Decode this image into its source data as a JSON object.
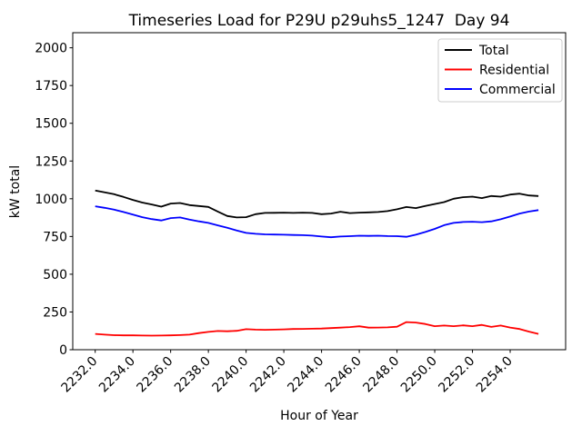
{
  "chart_data": {
    "type": "line",
    "title": "Timeseries Load for P29U p29uhs5_1247  Day 94",
    "xlabel": "Hour of Year",
    "ylabel": "kW total",
    "xlim": [
      2230.81,
      2256.94
    ],
    "ylim": [
      0,
      2100
    ],
    "grid": false,
    "legend_position": "upper right",
    "xticks": {
      "values": [
        2232,
        2234,
        2236,
        2238,
        2240,
        2242,
        2244,
        2246,
        2248,
        2250,
        2252,
        2254
      ],
      "labels": [
        "2232.0",
        "2234.0",
        "2236.0",
        "2238.0",
        "2240.0",
        "2242.0",
        "2244.0",
        "2246.0",
        "2248.0",
        "2250.0",
        "2252.0",
        "2254.0"
      ]
    },
    "yticks": {
      "values": [
        0,
        250,
        500,
        750,
        1000,
        1250,
        1500,
        1750,
        2000
      ],
      "labels": [
        "0",
        "250",
        "500",
        "750",
        "1000",
        "1250",
        "1500",
        "1750",
        "2000"
      ]
    },
    "x": [
      2232.0,
      2232.5,
      2233.0,
      2233.5,
      2234.0,
      2234.5,
      2235.0,
      2235.5,
      2236.0,
      2236.5,
      2237.0,
      2237.5,
      2238.0,
      2238.5,
      2239.0,
      2239.5,
      2240.0,
      2240.5,
      2241.0,
      2241.5,
      2242.0,
      2242.5,
      2243.0,
      2243.5,
      2244.0,
      2244.5,
      2245.0,
      2245.5,
      2246.0,
      2246.5,
      2247.0,
      2247.5,
      2248.0,
      2248.5,
      2249.0,
      2249.5,
      2250.0,
      2250.5,
      2251.0,
      2251.5,
      2252.0,
      2252.5,
      2253.0,
      2253.5,
      2254.0,
      2254.5,
      2255.0,
      2255.5
    ],
    "series": [
      {
        "name": "Total",
        "color": "#000000",
        "values": [
          1055,
          1042,
          1030,
          1012,
          992,
          975,
          962,
          948,
          968,
          972,
          958,
          952,
          946,
          915,
          886,
          876,
          878,
          898,
          906,
          907,
          908,
          906,
          908,
          906,
          898,
          902,
          914,
          905,
          908,
          910,
          912,
          918,
          930,
          945,
          938,
          952,
          965,
          978,
          1000,
          1010,
          1014,
          1004,
          1018,
          1014,
          1028,
          1034,
          1022,
          1018
        ]
      },
      {
        "name": "Residential",
        "color": "#ff0000",
        "values": [
          105,
          100,
          96,
          95,
          95,
          94,
          93,
          94,
          95,
          97,
          100,
          110,
          118,
          124,
          122,
          125,
          136,
          133,
          132,
          133,
          135,
          137,
          138,
          139,
          140,
          143,
          146,
          150,
          155,
          146,
          147,
          148,
          152,
          183,
          180,
          170,
          156,
          160,
          156,
          161,
          156,
          164,
          151,
          160,
          147,
          137,
          120,
          105
        ]
      },
      {
        "name": "Commercial",
        "color": "#0000ff",
        "values": [
          950,
          940,
          928,
          912,
          895,
          878,
          865,
          856,
          872,
          876,
          862,
          850,
          840,
          824,
          808,
          790,
          774,
          768,
          764,
          763,
          762,
          760,
          759,
          756,
          750,
          745,
          750,
          752,
          755,
          754,
          755,
          753,
          752,
          748,
          762,
          780,
          800,
          825,
          840,
          846,
          848,
          845,
          850,
          864,
          882,
          902,
          915,
          925
        ]
      }
    ],
    "axis_color": "#000000",
    "legend_border_color": "#cccccc",
    "background_color": "#ffffff"
  }
}
